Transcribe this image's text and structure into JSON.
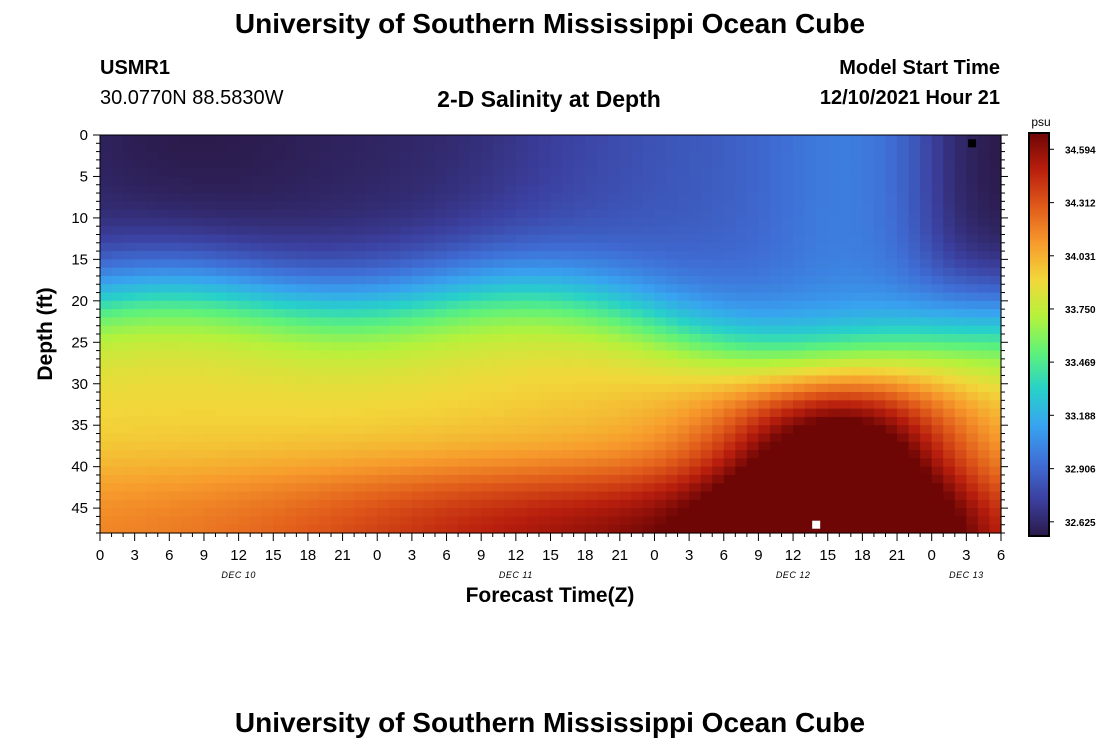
{
  "header": {
    "main_title": "University of Southern Mississippi Ocean Cube",
    "station": "USMR1",
    "coords": "30.0770N  88.5830W",
    "model_start_label": "Model Start Time",
    "model_start_value": "12/10/2021 Hour 21",
    "bottom_title": "University of Southern Mississippi Ocean Cube"
  },
  "colors": {
    "scale": [
      "#2b1a4a",
      "#3b3f9e",
      "#3f6fd6",
      "#38a3f0",
      "#27d1c9",
      "#5ef27a",
      "#b5f23b",
      "#f2d73a",
      "#f79a2c",
      "#e05a1a",
      "#b81e0d",
      "#6e0606"
    ]
  },
  "chart_data": {
    "type": "heatmap",
    "title": "2-D Salinity at Depth",
    "xlabel": "Forecast Time(Z)",
    "ylabel": "Depth (ft)",
    "x_tick_labels": [
      "0",
      "3",
      "6",
      "9",
      "12",
      "15",
      "18",
      "21",
      "0",
      "3",
      "6",
      "9",
      "12",
      "15",
      "18",
      "21",
      "0",
      "3",
      "6",
      "9",
      "12",
      "15",
      "18",
      "21",
      "0",
      "3",
      "6"
    ],
    "day_labels": [
      {
        "label": "DEC 10",
        "hour": 12
      },
      {
        "label": "DEC 11",
        "hour": 36
      },
      {
        "label": "DEC 12",
        "hour": 60
      },
      {
        "label": "DEC 13",
        "hour": 75
      }
    ],
    "xlim": [
      0,
      78
    ],
    "y_tick_labels": [
      "0",
      "5",
      "10",
      "15",
      "20",
      "25",
      "30",
      "35",
      "40",
      "45"
    ],
    "ylim": [
      0,
      48
    ],
    "colorbar": {
      "unit": "psu",
      "tick_labels": [
        "34.594",
        "34.312",
        "34.031",
        "33.750",
        "33.469",
        "33.188",
        "32.906",
        "32.625"
      ],
      "range": [
        32.55,
        34.68
      ]
    },
    "markers": [
      {
        "type": "max",
        "hour": 75.5,
        "depth": 1,
        "color": "#000000"
      },
      {
        "type": "min",
        "hour": 62,
        "depth": 47,
        "color": "#ffffff"
      }
    ],
    "grid": false
  }
}
